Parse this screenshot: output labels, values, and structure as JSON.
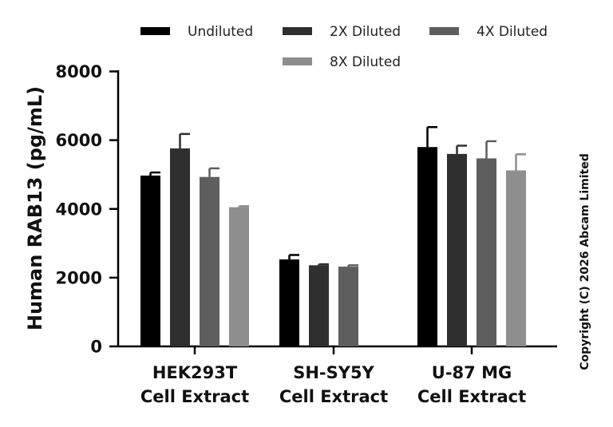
{
  "chart_data": {
    "type": "bar",
    "ylabel": "Human RAB13 (pg/mL)",
    "xlabel": "",
    "ylim": [
      0,
      8000
    ],
    "yticks": [
      0,
      2000,
      4000,
      6000,
      8000
    ],
    "legend_position": "top",
    "categories": [
      [
        "HEK293T",
        "Cell Extract"
      ],
      [
        "SH-SY5Y",
        "Cell Extract"
      ],
      [
        "U-87 MG",
        "Cell Extract"
      ]
    ],
    "series": [
      {
        "name": "Undiluted",
        "color": "#000000",
        "values": [
          4970,
          2530,
          5800
        ],
        "errors": [
          90,
          130,
          580
        ]
      },
      {
        "name": "2X Diluted",
        "color": "#2f2f2f",
        "values": [
          5760,
          2360,
          5600
        ],
        "errors": [
          420,
          30,
          240
        ]
      },
      {
        "name": "4X Diluted",
        "color": "#5e5e5e",
        "values": [
          4930,
          2320,
          5470
        ],
        "errors": [
          250,
          40,
          500
        ]
      },
      {
        "name": "8X Diluted",
        "color": "#8e8e8e",
        "values": [
          4050,
          null,
          5120
        ],
        "errors": [
          30,
          null,
          470
        ]
      }
    ],
    "copyright": "Copyright (C) 2026 Abcam Limited"
  }
}
